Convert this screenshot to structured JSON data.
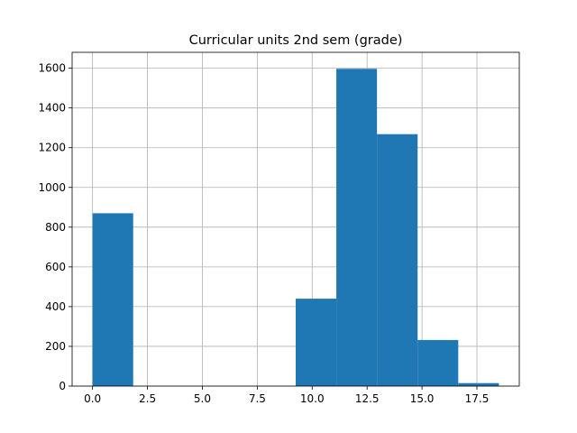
{
  "chart_data": {
    "type": "bar",
    "title": "Curricular units 2nd sem (grade)",
    "xlabel": "",
    "ylabel": "",
    "xlim": [
      -0.93,
      19.43
    ],
    "ylim": [
      0,
      1680
    ],
    "grid": true,
    "x_ticks": [
      0.0,
      2.5,
      5.0,
      7.5,
      10.0,
      12.5,
      15.0,
      17.5
    ],
    "x_tick_labels": [
      "0.0",
      "2.5",
      "5.0",
      "7.5",
      "10.0",
      "12.5",
      "15.0",
      "17.5"
    ],
    "y_ticks": [
      0,
      200,
      400,
      600,
      800,
      1000,
      1200,
      1400,
      1600
    ],
    "y_tick_labels": [
      "0",
      "200",
      "400",
      "600",
      "800",
      "1000",
      "1200",
      "1400",
      "1600"
    ],
    "bin_edges": [
      0.0,
      1.85,
      3.7,
      5.55,
      7.4,
      9.25,
      11.1,
      12.95,
      14.8,
      16.65,
      18.5
    ],
    "counts": [
      870,
      0,
      0,
      0,
      0,
      440,
      1597,
      1268,
      232,
      15
    ],
    "bar_color": "#1f77b4"
  }
}
